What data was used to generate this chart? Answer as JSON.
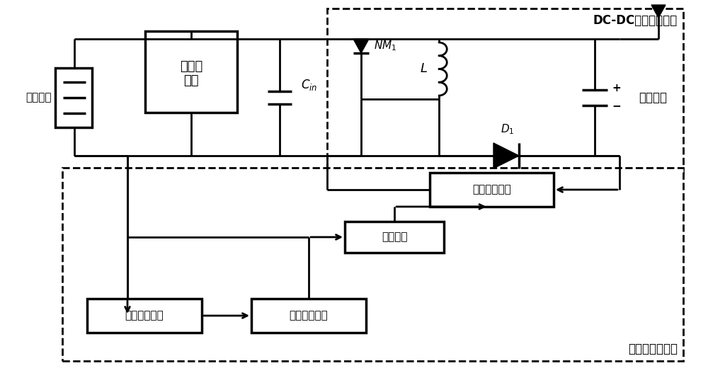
{
  "bg_color": "#ffffff",
  "line_color": "#000000",
  "lw": 2.0,
  "tlw": 2.5,
  "fig_width": 10.0,
  "fig_height": 5.27,
  "title": "DC-DC变换器功率级",
  "label_piezo": "压电材料",
  "label_bridge": "全桥整流器",
  "label_cin": "$C_{in}$",
  "label_nm1": "$NM_1$",
  "label_L": "$L$",
  "label_D1": "$D_1$",
  "label_storage": "储能器件",
  "label_switch_gen": "开关信号产生",
  "label_wake": "唤醒模块",
  "label_impact": "冲击周期探测",
  "label_switch_conv": "开关信号变换",
  "label_controller": "开关信号控制器"
}
